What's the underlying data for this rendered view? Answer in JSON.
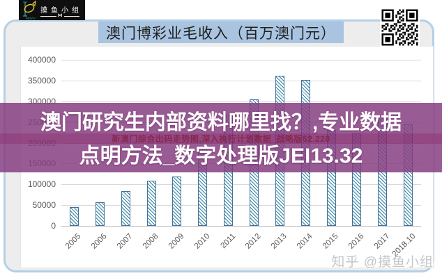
{
  "branding": {
    "logo_text": "摸鱼小组",
    "logo_sub": "MOYU",
    "logo_fish_icon": "fish-axis-icon",
    "qr_icon": "qr-code"
  },
  "header": {
    "title": "澳门博彩业毛收入（百万澳门元）"
  },
  "overlay": {
    "line1": "澳门研究生内部资料哪里找？,专业数据",
    "line2": "点明方法_数字处理版JEI13.32",
    "watermark": "新澳门综合出码走势图,深入执行计划数据_战略版52.220"
  },
  "watermark_bottom": "知乎 @摸鱼小组",
  "colors": {
    "banner": "#853c7f",
    "title_highlight": "#a9c4e0",
    "bar_border": "#41719c",
    "bar_hatch": "#317d9c",
    "panel_border": "#b5cfe5",
    "axis_text": "#595959",
    "gridline": "#d9d9d9"
  },
  "chart_data": {
    "type": "bar",
    "title": "澳门博彩业毛收入（百万澳门元）",
    "categories": [
      "2005",
      "2006",
      "2007",
      "2008",
      "2009",
      "2010",
      "2011",
      "2012",
      "2013",
      "2014",
      "2015",
      "2016",
      "2017",
      "2018.10"
    ],
    "values": [
      45800,
      56600,
      83000,
      108700,
      119400,
      188300,
      267900,
      304100,
      360700,
      351500,
      230800,
      223200,
      265700,
      245000
    ],
    "xlabel": "",
    "ylabel": "",
    "ylim": [
      0,
      400000
    ],
    "ytick_step": 50000,
    "grid": true,
    "legend": false,
    "bar_style": "diagonal-hatch"
  }
}
